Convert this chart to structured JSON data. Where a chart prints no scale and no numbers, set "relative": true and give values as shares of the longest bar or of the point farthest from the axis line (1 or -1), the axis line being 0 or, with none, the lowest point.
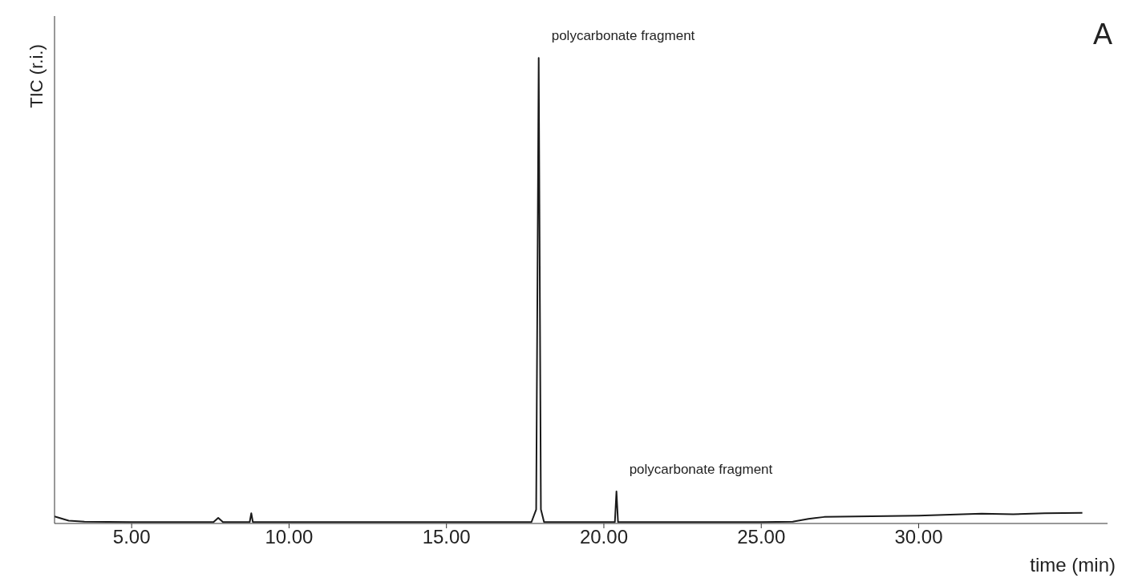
{
  "chart_data": {
    "type": "line",
    "relative": true,
    "xlabel": "time (min)",
    "ylabel": "TIC (r.i.)",
    "xlim": [
      2.55,
      36
    ],
    "xticks": [
      {
        "value": 5,
        "label": "5.00"
      },
      {
        "value": 10,
        "label": "10.00"
      },
      {
        "value": 15,
        "label": "15.00"
      },
      {
        "value": 20,
        "label": "20.00"
      },
      {
        "value": 25,
        "label": "25.00"
      },
      {
        "value": 30,
        "label": "30.00"
      }
    ],
    "x": [
      2.55,
      2.7,
      3.0,
      3.5,
      5,
      7.6,
      7.75,
      7.9,
      8.75,
      8.8,
      8.85,
      13,
      17.7,
      17.85,
      17.93,
      18.0,
      18.1,
      20.35,
      20.4,
      20.45,
      25,
      26,
      26.5,
      27,
      28,
      29,
      30,
      31,
      32,
      33,
      34,
      35.2
    ],
    "series": [
      {
        "color": "#1a1a1a",
        "values": [
          0.015,
          0.012,
          0.006,
          0.004,
          0.003,
          0.003,
          0.012,
          0.003,
          0.003,
          0.022,
          0.003,
          0.003,
          0.003,
          0.03,
          1,
          0.03,
          0.003,
          0.003,
          0.069,
          0.003,
          0.003,
          0.004,
          0.01,
          0.014,
          0.015,
          0.016,
          0.017,
          0.019,
          0.021,
          0.02,
          0.022,
          0.023
        ]
      }
    ],
    "annotations": [
      {
        "text": "polycarbonate fragment",
        "x": 17.93,
        "y": 1
      },
      {
        "text": "polycarbonate fragment",
        "x": 20.4,
        "y": 0.069
      },
      "A"
    ]
  }
}
